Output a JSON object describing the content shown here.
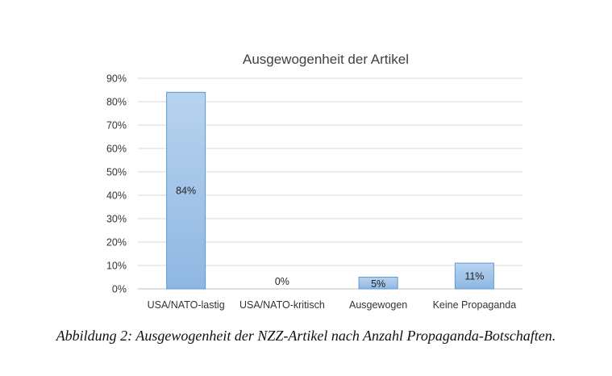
{
  "chart_data": {
    "type": "bar",
    "title": "Ausgewogenheit der Artikel",
    "categories": [
      "USA/NATO-lastig",
      "USA/NATO-kritisch",
      "Ausgewogen",
      "Keine Propaganda"
    ],
    "values": [
      84,
      0,
      5,
      11
    ],
    "data_labels": [
      "84%",
      "0%",
      "5%",
      "11%"
    ],
    "y_ticks": [
      "0%",
      "10%",
      "20%",
      "30%",
      "40%",
      "50%",
      "60%",
      "70%",
      "80%",
      "90%"
    ],
    "ylim": [
      0,
      90
    ],
    "grid": true,
    "bar_color": "#9dc3e6",
    "bar_edge_color": "#5b9bd5"
  },
  "caption": "Abbildung 2: Ausgewogenheit der NZZ-Artikel nach Anzahl Propaganda-Botschaften."
}
